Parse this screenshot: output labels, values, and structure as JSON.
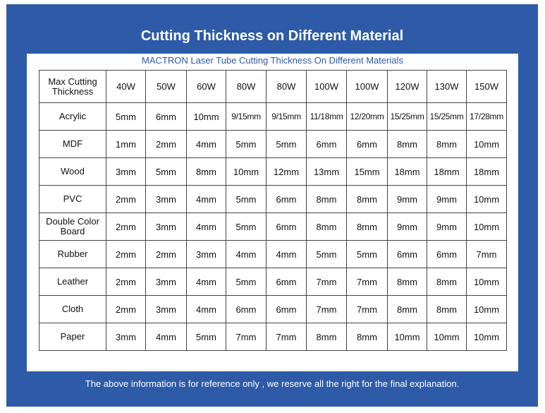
{
  "title": "Cutting Thickness on Different Material",
  "subtitle": "MACTRON Laser Tube Cutting Thickness On Different Materials",
  "footer": "The above information is for reference only , we reserve all the right for the final explanation.",
  "table": {
    "corner_label": "Max Cutting Thickness",
    "powers": [
      "40W",
      "50W",
      "60W",
      "80W",
      "80W",
      "100W",
      "100W",
      "120W",
      "130W",
      "150W"
    ],
    "rows": [
      {
        "material": "Acrylic",
        "values": [
          "5mm",
          "6mm",
          "10mm",
          "9/15mm",
          "9/15mm",
          "11/18mm",
          "12/20mm",
          "15/25mm",
          "15/25mm",
          "17/28mm"
        ]
      },
      {
        "material": "MDF",
        "values": [
          "1mm",
          "2mm",
          "4mm",
          "5mm",
          "5mm",
          "6mm",
          "6mm",
          "8mm",
          "8mm",
          "10mm"
        ]
      },
      {
        "material": "Wood",
        "values": [
          "3mm",
          "5mm",
          "8mm",
          "10mm",
          "12mm",
          "13mm",
          "15mm",
          "18mm",
          "18mm",
          "18mm"
        ]
      },
      {
        "material": "PVC",
        "values": [
          "2mm",
          "3mm",
          "4mm",
          "5mm",
          "6mm",
          "8mm",
          "8mm",
          "9mm",
          "9mm",
          "10mm"
        ]
      },
      {
        "material": "Double Color Board",
        "values": [
          "2mm",
          "3mm",
          "4mm",
          "5mm",
          "6mm",
          "8mm",
          "8mm",
          "9mm",
          "9mm",
          "10mm"
        ]
      },
      {
        "material": "Rubber",
        "values": [
          "2mm",
          "2mm",
          "3mm",
          "4mm",
          "4mm",
          "5mm",
          "5mm",
          "6mm",
          "6mm",
          "7mm"
        ]
      },
      {
        "material": "Leather",
        "values": [
          "2mm",
          "3mm",
          "4mm",
          "5mm",
          "6mm",
          "7mm",
          "7mm",
          "8mm",
          "8mm",
          "10mm"
        ]
      },
      {
        "material": "Cloth",
        "values": [
          "2mm",
          "3mm",
          "4mm",
          "6mm",
          "6mm",
          "7mm",
          "7mm",
          "8mm",
          "8mm",
          "10mm"
        ]
      },
      {
        "material": "Paper",
        "values": [
          "3mm",
          "4mm",
          "5mm",
          "7mm",
          "7mm",
          "8mm",
          "8mm",
          "10mm",
          "10mm",
          "10mm"
        ]
      }
    ]
  }
}
